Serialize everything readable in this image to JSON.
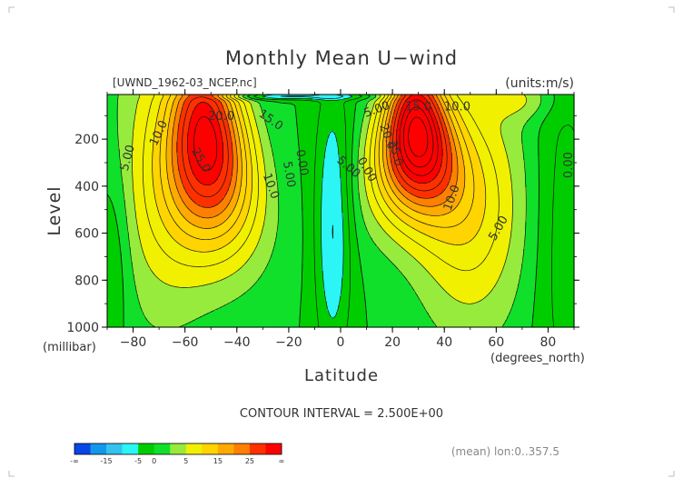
{
  "chart_data": {
    "type": "heatmap",
    "title": "Monthly Mean U−wind",
    "dataset_label": "[UWND_1962-03_NCEP.nc]",
    "units_label": "(units:m/s)",
    "ylabel": "Level",
    "yunit": "(millibar)",
    "xlabel": "Latitude",
    "xunit": "(degrees_north)",
    "footer": "CONTOUR INTERVAL = 2.500E+00",
    "annotation": "(mean) lon:0..357.5",
    "xlim": [
      -90,
      90
    ],
    "ylim": [
      1000,
      10
    ],
    "x_ticks": [
      -80,
      -60,
      -40,
      -20,
      0,
      20,
      40,
      60,
      80
    ],
    "x_tick_labels": [
      "−80",
      "−60",
      "−40",
      "−20",
      "0",
      "20",
      "40",
      "60",
      "80"
    ],
    "y_ticks": [
      200,
      400,
      600,
      800,
      1000
    ],
    "y_tick_labels": [
      "200",
      "400",
      "600",
      "800",
      "1000"
    ],
    "jets": [
      {
        "hemisphere": "south",
        "lat": -51,
        "level": 220,
        "peak": 27
      },
      {
        "hemisphere": "north",
        "lat": 29,
        "level": 180,
        "peak": 32
      }
    ],
    "contour_labels": [
      {
        "text": "20.0",
        "lat": -46,
        "level": 105,
        "angle": 0
      },
      {
        "text": "15.0",
        "lat": -27,
        "level": 120,
        "angle": 35
      },
      {
        "text": "10.0",
        "lat": -70,
        "level": 175,
        "angle": -65
      },
      {
        "text": "25.0",
        "lat": -54,
        "level": 290,
        "angle": 60
      },
      {
        "text": "5.00",
        "lat": -82,
        "level": 280,
        "angle": -75
      },
      {
        "text": "10.0",
        "lat": -27,
        "level": 400,
        "angle": 70
      },
      {
        "text": "5.00",
        "lat": -20,
        "level": 350,
        "angle": 80
      },
      {
        "text": "0.00",
        "lat": -15,
        "level": 300,
        "angle": 80
      },
      {
        "text": "5.00",
        "lat": 3,
        "level": 320,
        "angle": 40
      },
      {
        "text": "0.00",
        "lat": 10,
        "level": 330,
        "angle": 60
      },
      {
        "text": "5.00",
        "lat": 14,
        "level": 75,
        "angle": -20
      },
      {
        "text": "15.0",
        "lat": 30,
        "level": 65,
        "angle": 0
      },
      {
        "text": "10.0",
        "lat": 45,
        "level": 65,
        "angle": 0
      },
      {
        "text": "20.0",
        "lat": 18,
        "level": 190,
        "angle": 70
      },
      {
        "text": "25.0",
        "lat": 21,
        "level": 260,
        "angle": 75
      },
      {
        "text": "10.0",
        "lat": 43,
        "level": 450,
        "angle": -70
      },
      {
        "text": "5.00",
        "lat": 61,
        "level": 580,
        "angle": -60
      },
      {
        "text": "0.00",
        "lat": 88,
        "level": 310,
        "angle": -90
      }
    ],
    "colorbar": {
      "levels": [
        "-∞",
        "-15",
        "-5",
        "0",
        "5",
        "15",
        "25",
        "∞"
      ],
      "colors": [
        "#0a46e6",
        "#1296ee",
        "#33c3ee",
        "#2bf5f5",
        "#00cd00",
        "#10e02a",
        "#96eb3c",
        "#f0f000",
        "#ffd400",
        "#ffaa00",
        "#ff8000",
        "#ff3000",
        "#ff0000"
      ],
      "bin_edges": [
        -30,
        -15,
        -10,
        -5,
        0,
        2.5,
        5,
        10,
        15,
        17.5,
        20,
        25,
        30
      ]
    }
  }
}
